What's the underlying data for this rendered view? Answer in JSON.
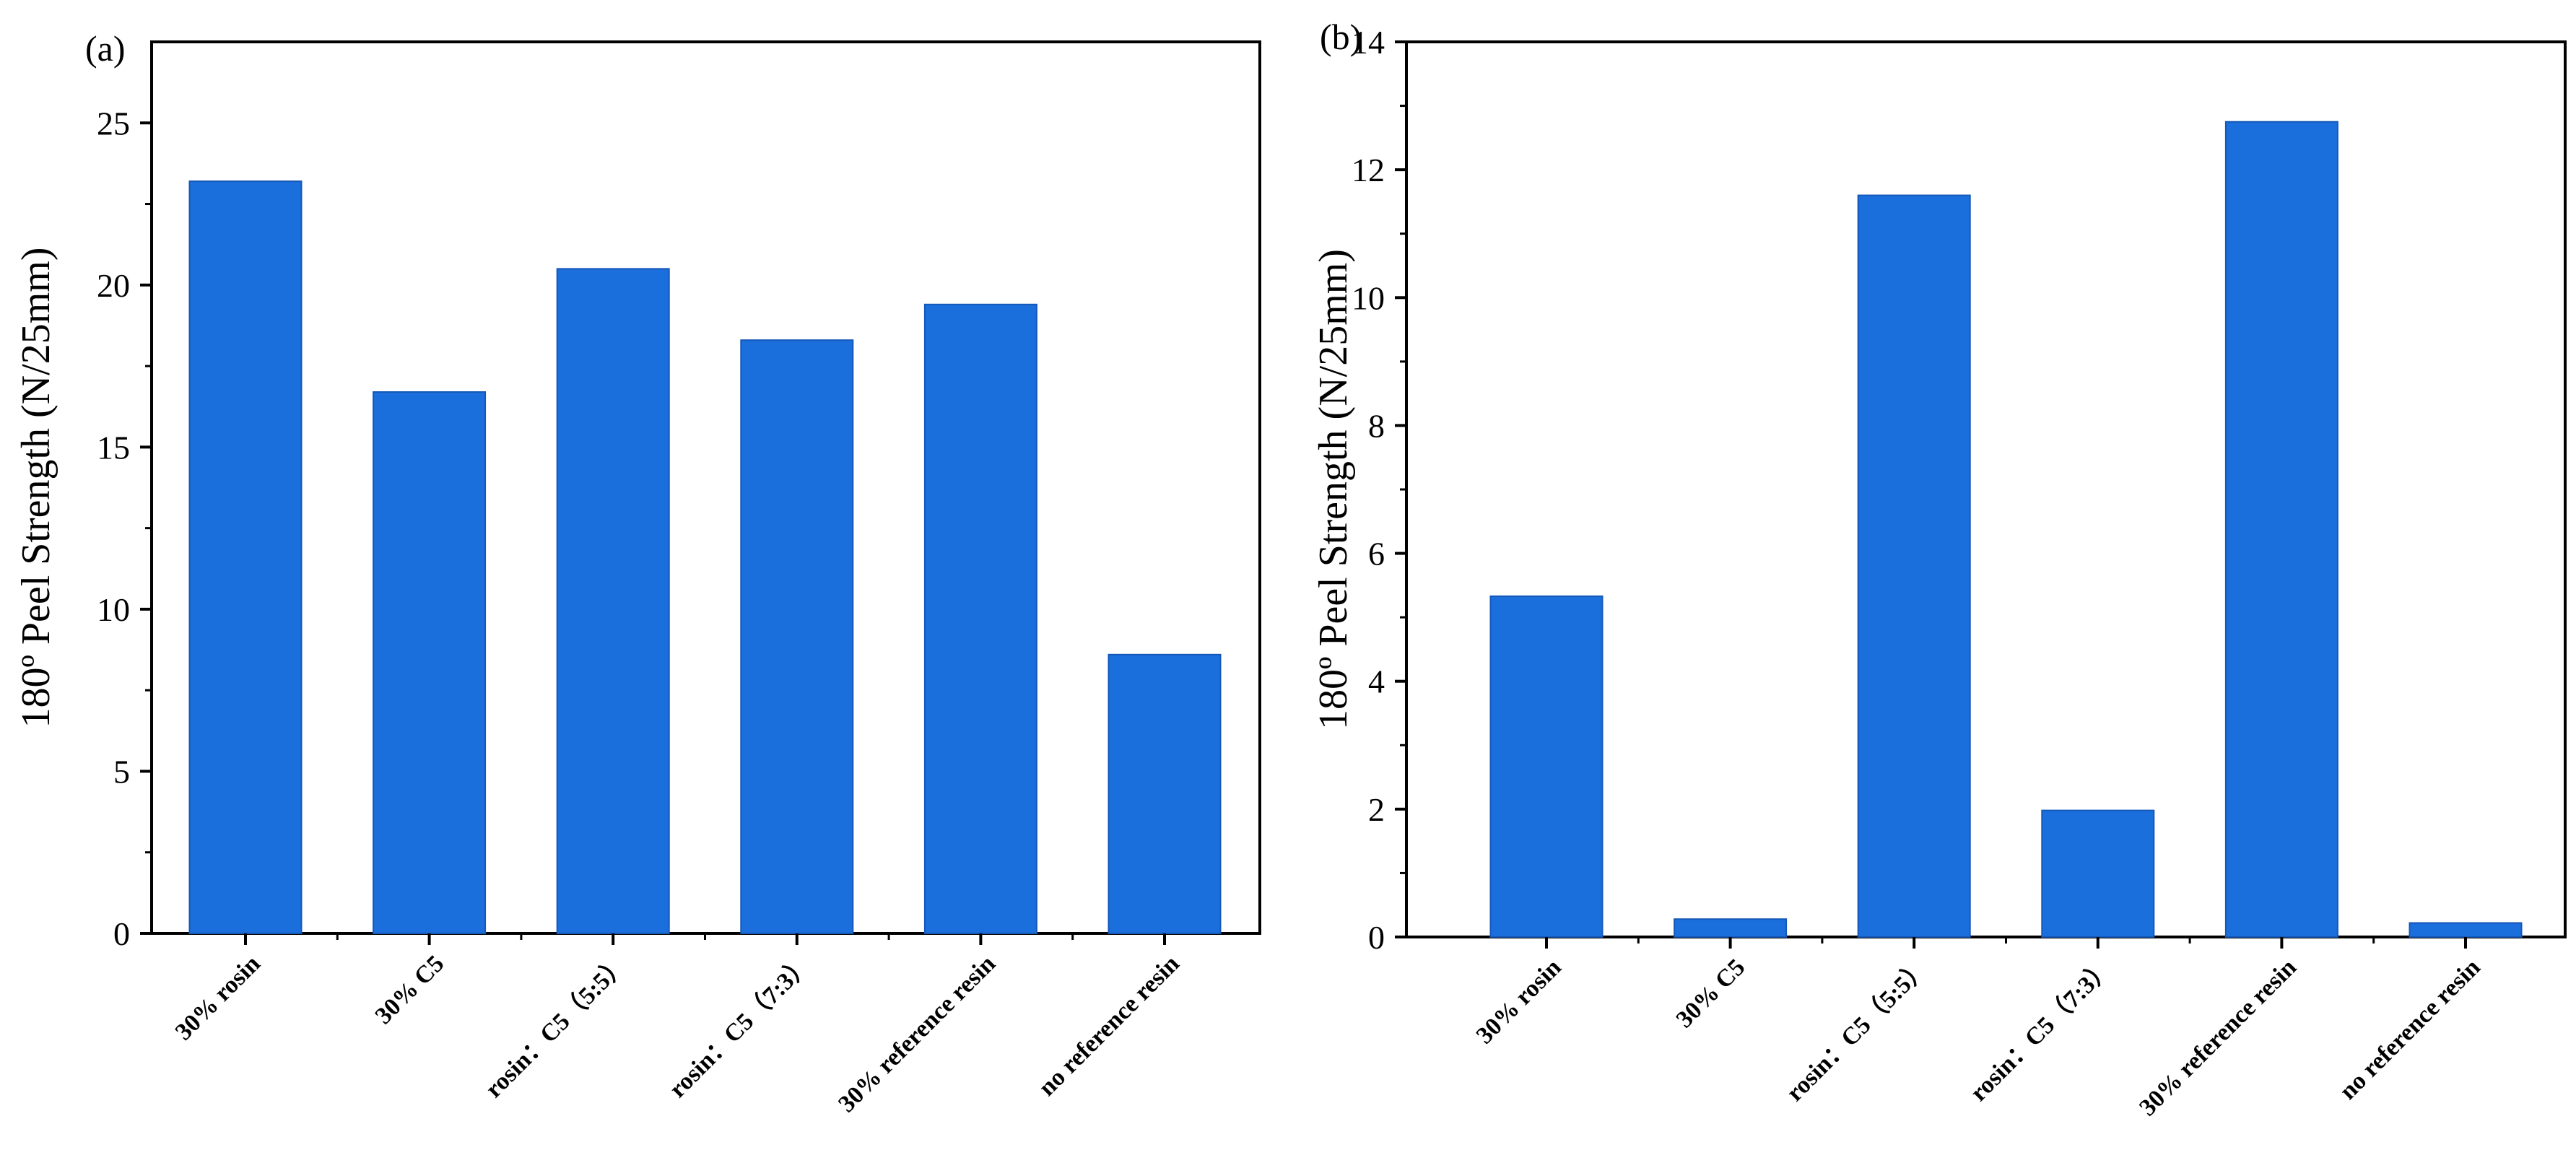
{
  "chart_data": [
    {
      "type": "bar",
      "panel_label": "(a)",
      "categories": [
        "30% rosin",
        "30% C5",
        "rosin：C5（5:5）",
        "rosin：C5（7:3）",
        "30% reference resin",
        "no reference resin"
      ],
      "values": [
        23.2,
        16.7,
        20.5,
        18.3,
        19.4,
        8.6
      ],
      "title": "",
      "xlabel": "",
      "ylabel": "180º Peel Strength (N/25mm)",
      "ylim": [
        0,
        27.5
      ],
      "yticks": [
        0,
        5,
        10,
        15,
        20,
        25
      ],
      "ytick_labels": [
        "0",
        "5",
        "10",
        "15",
        "20",
        "25"
      ],
      "grid": false,
      "bar_color": "#1a6fdc"
    },
    {
      "type": "bar",
      "panel_label": "(b)",
      "categories": [
        "30% rosin",
        "30% C5",
        "rosin：C5（5:5）",
        "rosin：C5（7:3）",
        "30% reference resin",
        "no reference resin"
      ],
      "values": [
        5.33,
        0.28,
        11.6,
        1.98,
        12.75,
        0.22
      ],
      "title": "",
      "xlabel": "",
      "ylabel": "180º Peel Strength (N/25mm)",
      "ylim": [
        0,
        14
      ],
      "yticks": [
        0,
        2,
        4,
        6,
        8,
        10,
        12,
        14
      ],
      "ytick_labels": [
        "0",
        "2",
        "4",
        "6",
        "8",
        "10",
        "12",
        "14"
      ],
      "grid": false,
      "bar_color": "#1a6fdc"
    }
  ]
}
